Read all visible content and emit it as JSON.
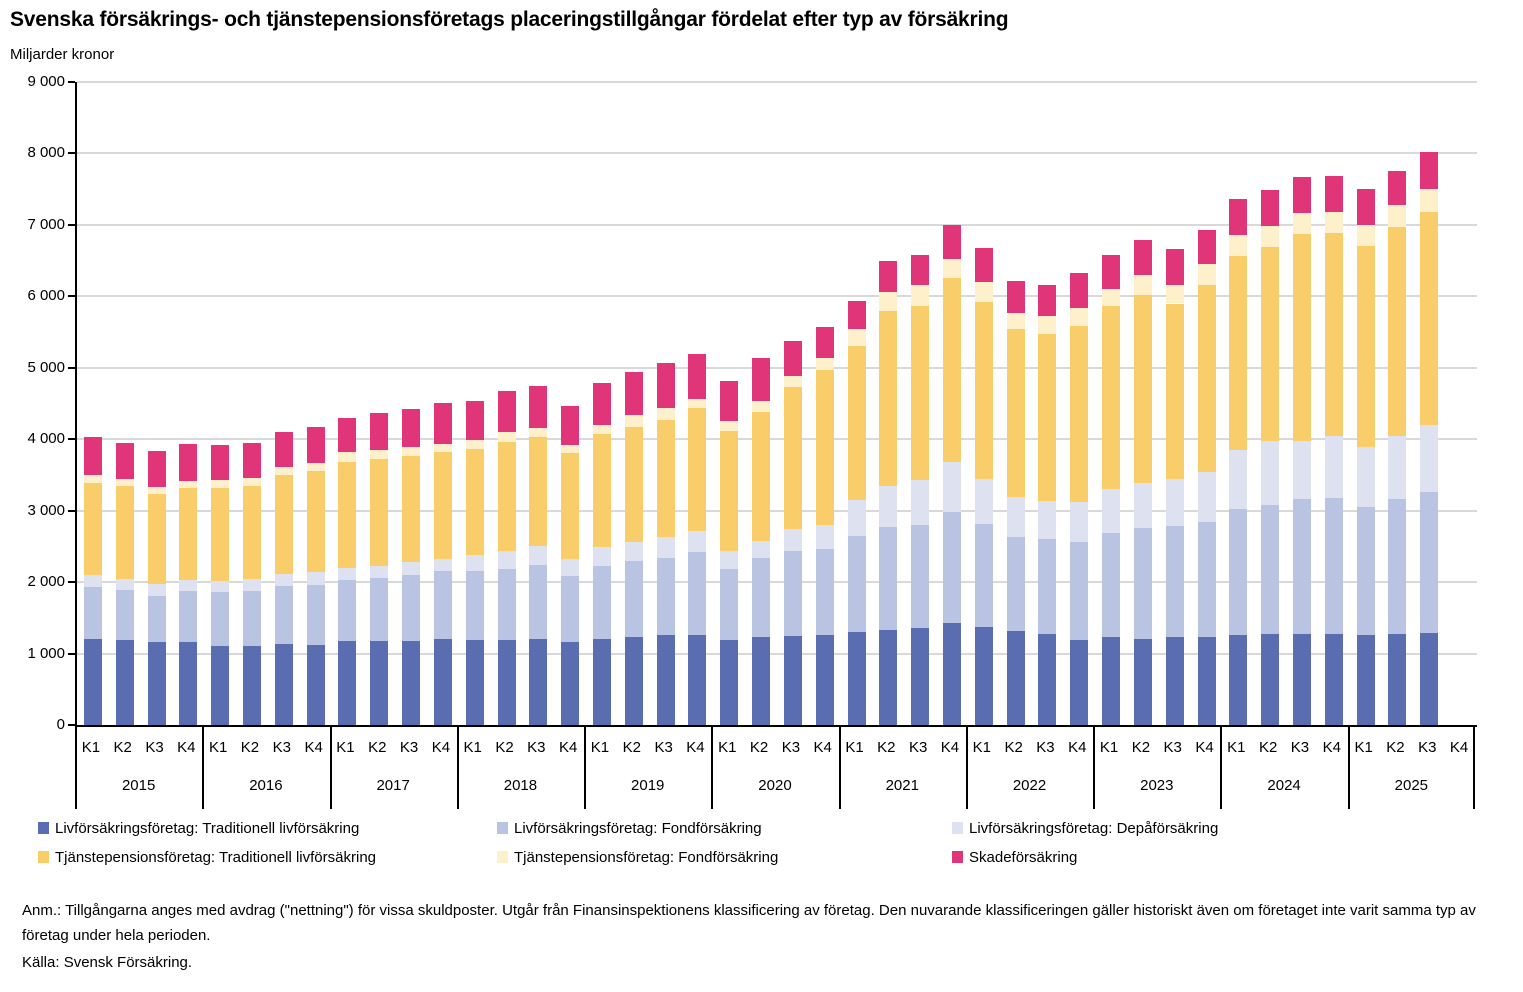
{
  "title": "Svenska försäkrings- och tjänstepensionsföretags placeringstillgångar fördelat efter typ av försäkring",
  "subtitle": "Miljarder kronor",
  "footnote": {
    "anm": "Anm.: Tillgångarna anges med avdrag (\"nettning\") för vissa skuldposter. Utgår från Finansinspektionens klassificering av företag. Den nuvarande  klassificeringen gäller historiskt även om företaget inte varit samma typ av företag under hela perioden.",
    "source": "Källa: Svensk Försäkring."
  },
  "chart_data": {
    "type": "bar",
    "stacked": true,
    "title": "Svenska försäkrings- och tjänstepensionsföretags placeringstillgångar fördelat efter typ av försäkring",
    "ylabel": "Miljarder kronor",
    "ylim": [
      0,
      9000
    ],
    "ytick_step": 1000,
    "ytick_labels": [
      "0",
      "1 000",
      "2 000",
      "3 000",
      "4 000",
      "5 000",
      "6 000",
      "7 000",
      "8 000",
      "9 000"
    ],
    "grid": true,
    "gridline_color": "#d9d9d9",
    "legend_position": "bottom",
    "years": [
      "2015",
      "2016",
      "2017",
      "2018",
      "2019",
      "2020",
      "2021",
      "2022",
      "2023",
      "2024",
      "2025"
    ],
    "quarters": [
      "K1",
      "K2",
      "K3",
      "K4"
    ],
    "categories": [
      "2015 K1",
      "2015 K2",
      "2015 K3",
      "2015 K4",
      "2016 K1",
      "2016 K2",
      "2016 K3",
      "2016 K4",
      "2017 K1",
      "2017 K2",
      "2017 K3",
      "2017 K4",
      "2018 K1",
      "2018 K2",
      "2018 K3",
      "2018 K4",
      "2019 K1",
      "2019 K2",
      "2019 K3",
      "2019 K4",
      "2020 K1",
      "2020 K2",
      "2020 K3",
      "2020 K4",
      "2021 K1",
      "2021 K2",
      "2021 K3",
      "2021 K4",
      "2022 K1",
      "2022 K2",
      "2022 K3",
      "2022 K4",
      "2023 K1",
      "2023 K2",
      "2023 K3",
      "2023 K4",
      "2024 K1",
      "2024 K2",
      "2024 K3",
      "2024 K4",
      "2025 K1",
      "2025 K2",
      "2025 K3"
    ],
    "series": [
      {
        "name": "Livförsäkringsföretag: Traditionell livförsäkring",
        "color": "#5b6db1",
        "values": [
          1200,
          1195,
          1160,
          1165,
          1110,
          1110,
          1130,
          1125,
          1180,
          1170,
          1180,
          1205,
          1185,
          1195,
          1210,
          1160,
          1210,
          1230,
          1255,
          1265,
          1185,
          1230,
          1250,
          1260,
          1300,
          1335,
          1360,
          1430,
          1370,
          1320,
          1280,
          1195,
          1230,
          1210,
          1230,
          1235,
          1265,
          1275,
          1280,
          1280,
          1265,
          1275,
          1290
        ]
      },
      {
        "name": "Livförsäkringsföretag: Fondförsäkring",
        "color": "#b8c4e2",
        "values": [
          730,
          700,
          650,
          705,
          750,
          765,
          810,
          835,
          850,
          885,
          920,
          945,
          965,
          985,
          1035,
          920,
          1010,
          1060,
          1080,
          1155,
          995,
          1105,
          1190,
          1205,
          1345,
          1430,
          1440,
          1550,
          1450,
          1315,
          1320,
          1365,
          1455,
          1545,
          1555,
          1600,
          1765,
          1805,
          1880,
          1900,
          1780,
          1895,
          1965
        ]
      },
      {
        "name": "Livförsäkringsföretag: Depåförsäkring",
        "color": "#dde1f0",
        "values": [
          170,
          155,
          165,
          165,
          160,
          170,
          175,
          185,
          165,
          170,
          175,
          175,
          230,
          250,
          265,
          245,
          270,
          270,
          290,
          290,
          255,
          240,
          300,
          330,
          510,
          585,
          630,
          695,
          630,
          560,
          535,
          555,
          615,
          635,
          665,
          700,
          820,
          890,
          810,
          860,
          840,
          880,
          945
        ]
      },
      {
        "name": "Tjänstepensionsföretag: Traditionell livförsäkring",
        "color": "#facd6b",
        "values": [
          1290,
          1300,
          1260,
          1280,
          1300,
          1300,
          1385,
          1405,
          1490,
          1495,
          1490,
          1490,
          1490,
          1530,
          1515,
          1485,
          1590,
          1615,
          1650,
          1730,
          1675,
          1810,
          1990,
          2170,
          2145,
          2440,
          2440,
          2580,
          2475,
          2345,
          2335,
          2465,
          2565,
          2630,
          2450,
          2625,
          2710,
          2720,
          2900,
          2840,
          2820,
          2920,
          2975
        ]
      },
      {
        "name": "Tjänstepensionsföretag: Fondförsäkring",
        "color": "#fdf0cb",
        "values": [
          110,
          100,
          100,
          105,
          105,
          110,
          115,
          115,
          130,
          125,
          125,
          125,
          125,
          140,
          135,
          110,
          125,
          160,
          165,
          120,
          140,
          150,
          150,
          175,
          245,
          265,
          295,
          265,
          270,
          230,
          260,
          250,
          235,
          275,
          265,
          290,
          300,
          300,
          295,
          300,
          300,
          310,
          325
        ]
      },
      {
        "name": "Skadeförsäkring",
        "color": "#e13579",
        "values": [
          535,
          500,
          500,
          520,
          500,
          490,
          490,
          500,
          480,
          525,
          540,
          565,
          535,
          580,
          590,
          550,
          580,
          610,
          625,
          640,
          560,
          600,
          490,
          430,
          395,
          435,
          420,
          475,
          475,
          450,
          430,
          490,
          475,
          495,
          500,
          480,
          500,
          505,
          510,
          510,
          495,
          480,
          525
        ]
      }
    ]
  }
}
